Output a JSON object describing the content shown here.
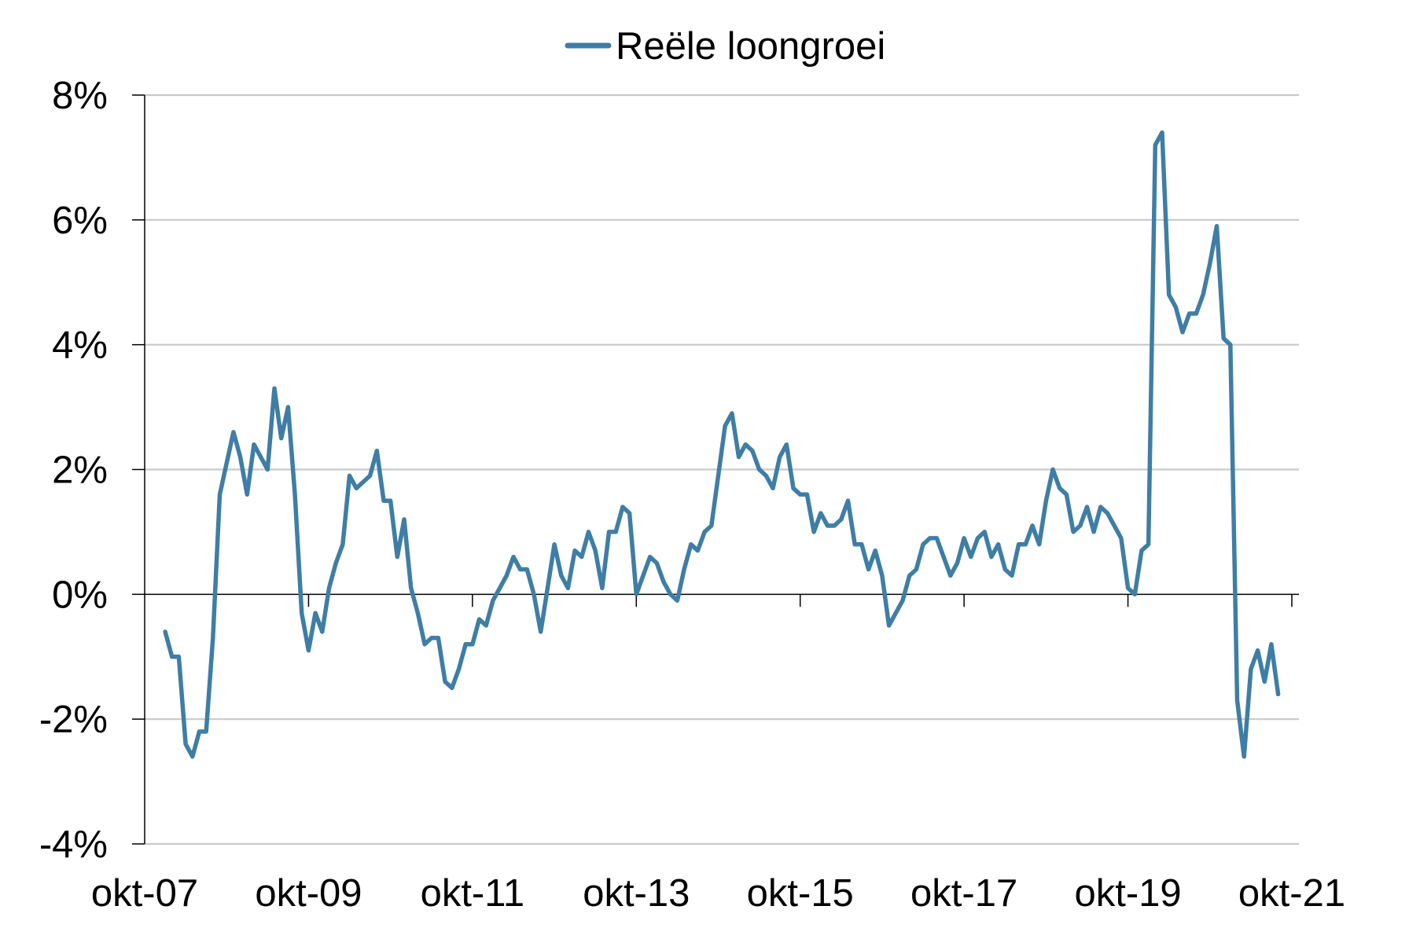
{
  "chart_data": {
    "type": "line",
    "title": "",
    "xlabel": "",
    "ylabel": "",
    "ylim": [
      -4,
      8
    ],
    "yticks": [
      -4,
      -2,
      0,
      2,
      4,
      6,
      8
    ],
    "ytick_labels": [
      "-4%",
      "-2%",
      "0%",
      "2%",
      "4%",
      "6%",
      "8%"
    ],
    "x_start": "2007-10",
    "x_end": "2021-10",
    "xtick_labels": [
      "okt-07",
      "okt-09",
      "okt-11",
      "okt-13",
      "okt-15",
      "okt-17",
      "okt-19",
      "okt-21"
    ],
    "grid": true,
    "legend_position": "top-center",
    "color": "#3e7ea6",
    "series": [
      {
        "name": "Reële loongroei",
        "start": "2008-01",
        "frequency": "monthly",
        "values": [
          -0.6,
          -1.0,
          -1.0,
          -2.4,
          -2.6,
          -2.2,
          -2.2,
          -0.7,
          1.6,
          2.1,
          2.6,
          2.2,
          1.6,
          2.4,
          2.2,
          2.0,
          3.3,
          2.5,
          3.0,
          1.6,
          -0.3,
          -0.9,
          -0.3,
          -0.6,
          0.1,
          0.5,
          0.8,
          1.9,
          1.7,
          1.8,
          1.9,
          2.3,
          1.5,
          1.5,
          0.6,
          1.2,
          0.1,
          -0.3,
          -0.8,
          -0.7,
          -0.7,
          -1.4,
          -1.5,
          -1.2,
          -0.8,
          -0.8,
          -0.4,
          -0.5,
          -0.1,
          0.1,
          0.3,
          0.6,
          0.4,
          0.4,
          -0.0,
          -0.6,
          0.1,
          0.8,
          0.3,
          0.1,
          0.7,
          0.6,
          1.0,
          0.7,
          0.1,
          1.0,
          1.0,
          1.4,
          1.3,
          0.0,
          0.3,
          0.6,
          0.5,
          0.2,
          0.0,
          -0.1,
          0.4,
          0.8,
          0.7,
          1.0,
          1.1,
          1.9,
          2.7,
          2.9,
          2.2,
          2.4,
          2.3,
          2.0,
          1.9,
          1.7,
          2.2,
          2.4,
          1.7,
          1.6,
          1.6,
          1.0,
          1.3,
          1.1,
          1.1,
          1.2,
          1.5,
          0.8,
          0.8,
          0.4,
          0.7,
          0.3,
          -0.5,
          -0.3,
          -0.1,
          0.3,
          0.4,
          0.8,
          0.9,
          0.9,
          0.6,
          0.3,
          0.5,
          0.9,
          0.6,
          0.9,
          1.0,
          0.6,
          0.8,
          0.4,
          0.3,
          0.8,
          0.8,
          1.1,
          0.8,
          1.5,
          2.0,
          1.7,
          1.6,
          1.0,
          1.1,
          1.4,
          1.0,
          1.4,
          1.3,
          1.1,
          0.9,
          0.1,
          0.0,
          0.7,
          0.8,
          7.2,
          7.4,
          4.8,
          4.6,
          4.2,
          4.5,
          4.5,
          4.8,
          5.3,
          5.9,
          4.1,
          4.0,
          -1.7,
          -2.6,
          -1.2,
          -0.9,
          -1.4,
          -0.8,
          -1.6
        ]
      }
    ]
  }
}
